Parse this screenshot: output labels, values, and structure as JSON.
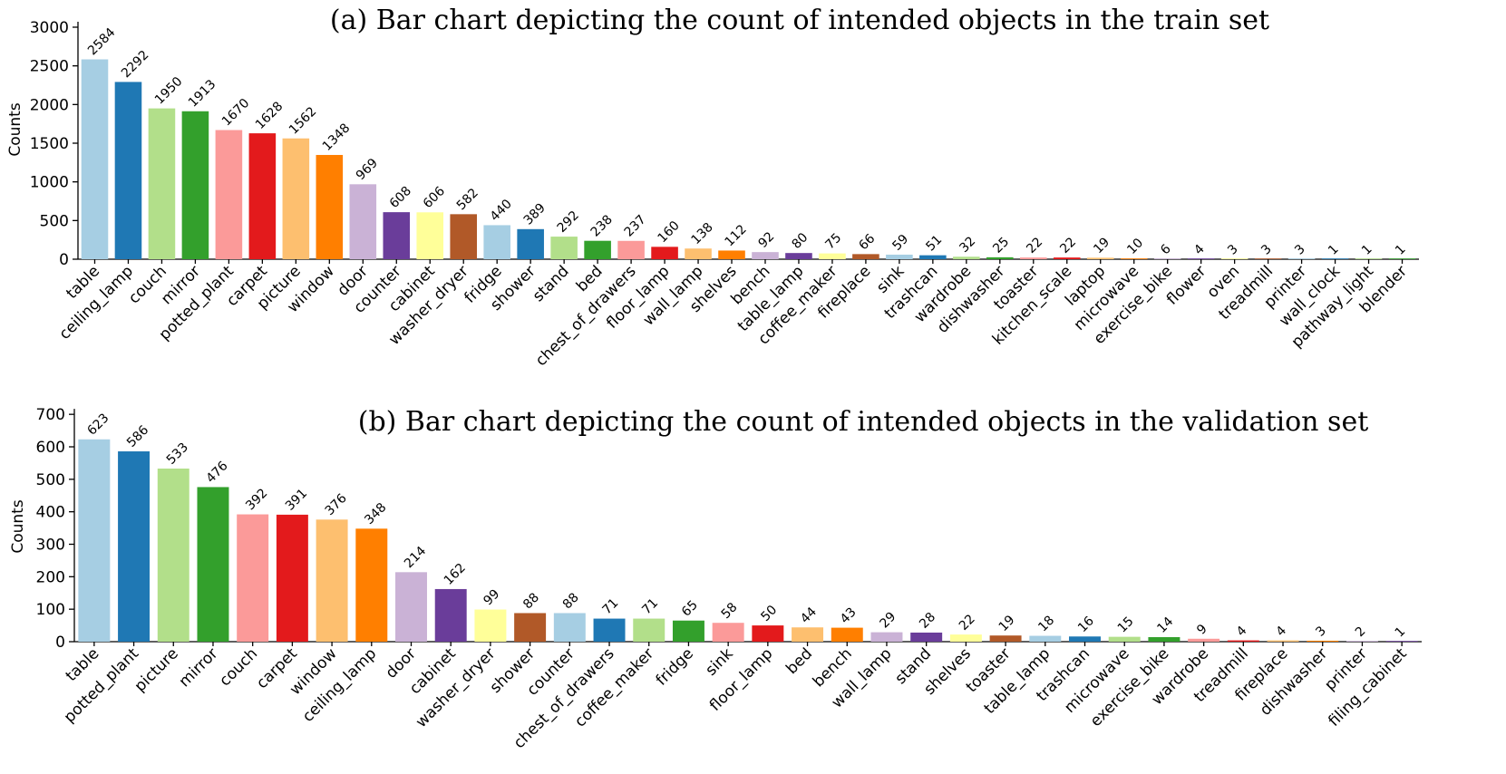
{
  "palette": [
    "#a6cee3",
    "#1f78b4",
    "#b2df8a",
    "#33a02c",
    "#fb9a99",
    "#e31a1c",
    "#fdbf6f",
    "#ff7f00",
    "#cab2d6",
    "#6a3d9a",
    "#ffff99",
    "#b15928"
  ],
  "chart_data": [
    {
      "type": "bar",
      "title": "(a) Bar chart depicting the count of intended objects in the train set",
      "xlabel": "",
      "ylabel": "Counts",
      "ylim": [
        0,
        3000
      ],
      "yticks": [
        0,
        500,
        1000,
        1500,
        2000,
        2500,
        3000
      ],
      "categories": [
        "table",
        "ceiling_lamp",
        "couch",
        "mirror",
        "potted_plant",
        "carpet",
        "picture",
        "window",
        "door",
        "counter",
        "cabinet",
        "washer_dryer",
        "fridge",
        "shower",
        "stand",
        "bed",
        "chest_of_drawers",
        "floor_lamp",
        "wall_lamp",
        "shelves",
        "bench",
        "table_lamp",
        "coffee_maker",
        "fireplace",
        "sink",
        "trashcan",
        "wardrobe",
        "dishwasher",
        "toaster",
        "kitchen_scale",
        "laptop",
        "microwave",
        "exercise_bike",
        "flower",
        "oven",
        "treadmill",
        "printer",
        "wall_clock",
        "pathway_light",
        "blender"
      ],
      "values": [
        2584,
        2292,
        1950,
        1913,
        1670,
        1628,
        1562,
        1348,
        969,
        608,
        606,
        582,
        440,
        389,
        292,
        238,
        237,
        160,
        138,
        112,
        92,
        80,
        75,
        66,
        59,
        51,
        32,
        25,
        22,
        22,
        19,
        10,
        6,
        4,
        3,
        3,
        3,
        1,
        1,
        1
      ]
    },
    {
      "type": "bar",
      "title": "(b) Bar chart depicting the count of intended objects in the validation set",
      "xlabel": "",
      "ylabel": "Counts",
      "ylim": [
        0,
        720
      ],
      "yticks": [
        0,
        100,
        200,
        300,
        400,
        500,
        600,
        700
      ],
      "categories": [
        "table",
        "potted_plant",
        "picture",
        "mirror",
        "couch",
        "carpet",
        "window",
        "ceiling_lamp",
        "door",
        "cabinet",
        "washer_dryer",
        "shower",
        "counter",
        "chest_of_drawers",
        "coffee_maker",
        "fridge",
        "sink",
        "floor_lamp",
        "bed",
        "bench",
        "wall_lamp",
        "stand",
        "shelves",
        "toaster",
        "table_lamp",
        "trashcan",
        "microwave",
        "exercise_bike",
        "wardrobe",
        "treadmill",
        "fireplace",
        "dishwasher",
        "printer",
        "filing_cabinet"
      ],
      "values": [
        623,
        586,
        533,
        476,
        392,
        391,
        376,
        348,
        214,
        162,
        99,
        88,
        88,
        71,
        71,
        65,
        58,
        50,
        44,
        43,
        29,
        28,
        22,
        19,
        18,
        16,
        15,
        14,
        9,
        4,
        4,
        3,
        2,
        1
      ]
    }
  ]
}
